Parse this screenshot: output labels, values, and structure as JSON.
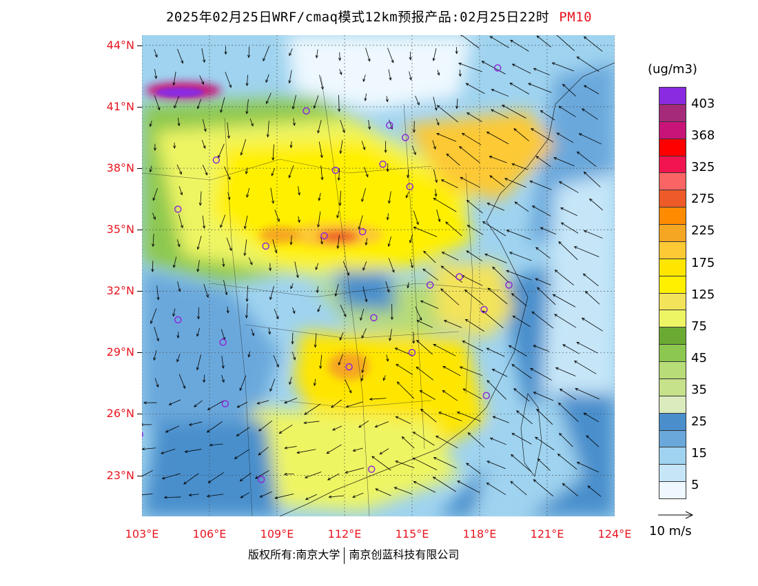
{
  "title": {
    "text": "2025年02月25日WRF/cmaq模式12km预报产品:02月25日22时",
    "pollutant": "PM10"
  },
  "map": {
    "lon_range": [
      103,
      124
    ],
    "lat_range": [
      21,
      44.5
    ],
    "lat_ticks": [
      "44°N",
      "41°N",
      "38°N",
      "35°N",
      "32°N",
      "29°N",
      "26°N",
      "23°N"
    ],
    "lat_values": [
      44,
      41,
      38,
      35,
      32,
      29,
      26,
      23
    ],
    "lon_ticks": [
      "103°E",
      "106°E",
      "109°E",
      "112°E",
      "115°E",
      "118°E",
      "121°E",
      "124°E"
    ],
    "lon_values": [
      103,
      106,
      109,
      112,
      115,
      118,
      121,
      124
    ],
    "city_markers": [
      [
        118.8,
        42.9
      ],
      [
        110.3,
        40.8
      ],
      [
        114.0,
        40.1
      ],
      [
        114.7,
        39.5
      ],
      [
        106.3,
        38.4
      ],
      [
        111.6,
        37.9
      ],
      [
        113.7,
        38.2
      ],
      [
        114.9,
        37.1
      ],
      [
        104.6,
        36.0
      ],
      [
        112.8,
        34.9
      ],
      [
        108.5,
        34.2
      ],
      [
        111.1,
        34.7
      ],
      [
        115.8,
        32.3
      ],
      [
        117.1,
        32.7
      ],
      [
        119.3,
        32.3
      ],
      [
        104.6,
        30.6
      ],
      [
        106.6,
        29.5
      ],
      [
        113.3,
        30.7
      ],
      [
        118.2,
        31.1
      ],
      [
        112.2,
        28.3
      ],
      [
        115.0,
        29.0
      ],
      [
        106.7,
        26.5
      ],
      [
        118.3,
        26.9
      ],
      [
        102.9,
        25.0
      ],
      [
        108.3,
        22.8
      ],
      [
        113.2,
        23.3
      ]
    ]
  },
  "legend": {
    "unit": "(ug/m3)",
    "levels": [
      "403",
      "368",
      "325",
      "275",
      "225",
      "175",
      "125",
      "75",
      "45",
      "35",
      "25",
      "15",
      "5"
    ],
    "colors": [
      "#8a2be2",
      "#a52a7a",
      "#c81478",
      "#ff0000",
      "#f21450",
      "#fa6464",
      "#ee5a28",
      "#ff8c00",
      "#f5a623",
      "#fdc935",
      "#ffe600",
      "#fff000",
      "#f3e35a",
      "#eef564",
      "#6aaa32",
      "#8cc850",
      "#b8dc78",
      "#c6e28a",
      "#dcebbe",
      "#4a8fcc",
      "#6aa8dc",
      "#9fd3ef",
      "#c6e6f8",
      "#eef8fe"
    ]
  },
  "wind_legend": {
    "label": "10 m/s"
  },
  "copyright": {
    "left": "版权所有:南京大学",
    "right": "南京创蓝科技有限公司"
  }
}
